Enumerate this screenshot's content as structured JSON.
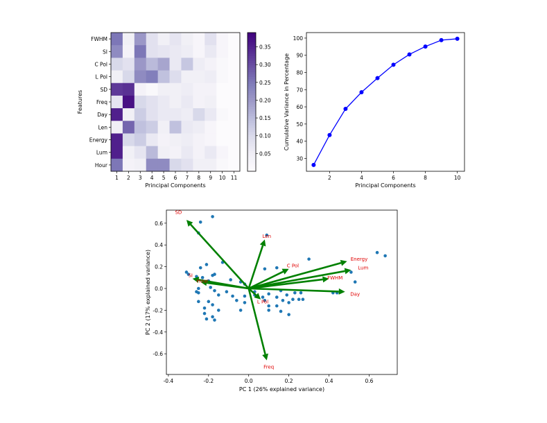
{
  "chart_data": [
    {
      "type": "heatmap",
      "rows": [
        "FWHM",
        "SI",
        "C Pol",
        "L Pol",
        "SD",
        "Freq",
        "Day",
        "Len",
        "Energy",
        "Lum",
        "Hour"
      ],
      "cols": [
        "1",
        "2",
        "3",
        "4",
        "5",
        "6",
        "7",
        "8",
        "9",
        "10",
        "11"
      ],
      "values": [
        [
          0.25,
          0.04,
          0.2,
          0.08,
          0.04,
          0.07,
          0.04,
          0.02,
          0.08,
          0.02,
          0.0
        ],
        [
          0.22,
          0.03,
          0.25,
          0.08,
          0.07,
          0.06,
          0.05,
          0.02,
          0.06,
          0.02,
          0.0
        ],
        [
          0.1,
          0.08,
          0.2,
          0.15,
          0.18,
          0.06,
          0.13,
          0.05,
          0.03,
          0.01,
          0.0
        ],
        [
          0.04,
          0.1,
          0.22,
          0.24,
          0.14,
          0.09,
          0.04,
          0.04,
          0.05,
          0.01,
          0.0
        ],
        [
          0.32,
          0.33,
          0.03,
          0.01,
          0.04,
          0.04,
          0.05,
          0.03,
          0.03,
          0.0,
          0.0
        ],
        [
          0.07,
          0.37,
          0.1,
          0.08,
          0.06,
          0.04,
          0.06,
          0.03,
          0.04,
          0.0,
          0.0
        ],
        [
          0.35,
          0.04,
          0.12,
          0.08,
          0.06,
          0.06,
          0.05,
          0.1,
          0.06,
          0.01,
          0.0
        ],
        [
          0.04,
          0.27,
          0.14,
          0.12,
          0.04,
          0.14,
          0.06,
          0.05,
          0.02,
          0.0,
          0.0
        ],
        [
          0.35,
          0.1,
          0.12,
          0.06,
          0.03,
          0.04,
          0.05,
          0.03,
          0.02,
          0.0,
          0.0
        ],
        [
          0.35,
          0.04,
          0.07,
          0.15,
          0.04,
          0.03,
          0.06,
          0.03,
          0.06,
          0.02,
          0.0
        ],
        [
          0.25,
          0.03,
          0.04,
          0.22,
          0.22,
          0.1,
          0.08,
          0.04,
          0.04,
          0.01,
          0.0
        ]
      ],
      "xlabel": "Principal Components",
      "ylabel": "Features",
      "colorbar": {
        "range": [
          0,
          0.39
        ],
        "ticks": [
          0.05,
          0.1,
          0.15,
          0.2,
          0.25,
          0.3,
          0.35
        ],
        "tick_labels": [
          "0.05",
          "0.10",
          "0.15",
          "0.20",
          "0.25",
          "0.30",
          "0.35"
        ],
        "colormap": "Purples"
      }
    },
    {
      "type": "line",
      "x": [
        1,
        2,
        3,
        4,
        5,
        6,
        7,
        8,
        9,
        10
      ],
      "y": [
        26.2,
        43.6,
        58.8,
        68.5,
        76.7,
        84.5,
        90.5,
        95.1,
        98.8,
        99.6
      ],
      "xlabel": "Principal Components",
      "ylabel": "Cumulative Variance in Percentage",
      "xlim": [
        0.55,
        10.45
      ],
      "ylim": [
        22.5,
        103.2
      ],
      "xticks": [
        2,
        4,
        6,
        8,
        10
      ],
      "yticks": [
        30,
        40,
        50,
        60,
        70,
        80,
        90,
        100
      ],
      "color": "#0000ff"
    },
    {
      "type": "scatter",
      "xlabel": "PC 1 (26% explained variance)",
      "ylabel": "PC 2 (17% explained variance)",
      "xlim": [
        -0.41,
        0.74
      ],
      "ylim": [
        -0.79,
        0.72
      ],
      "xticks": [
        -0.4,
        -0.2,
        0.0,
        0.2,
        0.4,
        0.6
      ],
      "yticks": [
        -0.6,
        -0.4,
        -0.2,
        0.0,
        0.2,
        0.4,
        0.6
      ],
      "point_color": "#1f77b4",
      "arrow_color": "#008000",
      "label_color": "#e00000",
      "points": [
        [
          -0.18,
          0.66
        ],
        [
          -0.24,
          0.61
        ],
        [
          -0.25,
          0.51
        ],
        [
          0.09,
          0.49
        ],
        [
          0.64,
          0.33
        ],
        [
          0.68,
          0.3
        ],
        [
          0.3,
          0.27
        ],
        [
          0.08,
          0.18
        ],
        [
          0.14,
          0.19
        ],
        [
          -0.31,
          0.15
        ],
        [
          -0.13,
          0.24
        ],
        [
          -0.21,
          0.22
        ],
        [
          -0.24,
          0.19
        ],
        [
          -0.3,
          0.13
        ],
        [
          -0.23,
          0.1
        ],
        [
          -0.18,
          0.12
        ],
        [
          -0.17,
          0.13
        ],
        [
          -0.26,
          0.11
        ],
        [
          -0.2,
          0.07
        ],
        [
          -0.09,
          0.08
        ],
        [
          -0.04,
          0.06
        ],
        [
          -0.02,
          0.04
        ],
        [
          -0.25,
          0.0
        ],
        [
          -0.25,
          -0.04
        ],
        [
          -0.19,
          0.01
        ],
        [
          -0.17,
          -0.02
        ],
        [
          -0.11,
          -0.03
        ],
        [
          -0.15,
          -0.06
        ],
        [
          -0.08,
          -0.07
        ],
        [
          -0.02,
          -0.07
        ],
        [
          0.03,
          -0.06
        ],
        [
          0.07,
          -0.08
        ],
        [
          0.1,
          -0.05
        ],
        [
          0.14,
          -0.08
        ],
        [
          0.19,
          -0.06
        ],
        [
          0.22,
          -0.1
        ],
        [
          0.23,
          -0.04
        ],
        [
          0.26,
          -0.04
        ],
        [
          0.2,
          -0.13
        ],
        [
          0.17,
          -0.11
        ],
        [
          0.14,
          -0.16
        ],
        [
          0.1,
          -0.16
        ],
        [
          0.1,
          -0.2
        ],
        [
          0.16,
          -0.21
        ],
        [
          0.2,
          -0.24
        ],
        [
          -0.22,
          -0.18
        ],
        [
          -0.25,
          -0.12
        ],
        [
          -0.2,
          -0.12
        ],
        [
          -0.18,
          -0.15
        ],
        [
          -0.15,
          -0.2
        ],
        [
          -0.18,
          -0.26
        ],
        [
          -0.17,
          -0.29
        ],
        [
          -0.21,
          -0.28
        ],
        [
          -0.22,
          -0.23
        ],
        [
          -0.26,
          -0.03
        ],
        [
          -0.04,
          -0.2
        ],
        [
          -0.06,
          -0.11
        ],
        [
          -0.02,
          -0.13
        ],
        [
          0.08,
          -0.11
        ],
        [
          0.25,
          -0.1
        ],
        [
          0.42,
          -0.04
        ],
        [
          0.44,
          -0.04
        ],
        [
          0.51,
          0.15
        ],
        [
          0.53,
          0.06
        ],
        [
          0.03,
          -0.03
        ],
        [
          0.16,
          -0.02
        ],
        [
          0.27,
          -0.1
        ]
      ],
      "arrows": [
        {
          "name": "SD",
          "dx": -0.31,
          "dy": 0.63,
          "label": [
            -0.35,
            0.7
          ]
        },
        {
          "name": "Len",
          "dx": 0.08,
          "dy": 0.45,
          "label": [
            0.09,
            0.48
          ]
        },
        {
          "name": "C Pol",
          "dx": 0.2,
          "dy": 0.18,
          "label": [
            0.22,
            0.21
          ]
        },
        {
          "name": "Energy",
          "dx": 0.49,
          "dy": 0.25,
          "label": [
            0.55,
            0.27
          ]
        },
        {
          "name": "Lum",
          "dx": 0.51,
          "dy": 0.17,
          "label": [
            0.57,
            0.19
          ]
        },
        {
          "name": "FWHM",
          "dx": 0.4,
          "dy": 0.09,
          "label": [
            0.43,
            0.1
          ]
        },
        {
          "name": "Day",
          "dx": 0.48,
          "dy": -0.03,
          "label": [
            0.53,
            -0.05
          ]
        },
        {
          "name": "SI",
          "dx": -0.28,
          "dy": 0.09,
          "label": [
            -0.29,
            0.12
          ]
        },
        {
          "name": "Hour",
          "dx": -0.24,
          "dy": 0.06,
          "label": [
            -0.23,
            0.07
          ]
        },
        {
          "name": "L Pol",
          "dx": 0.06,
          "dy": -0.1,
          "label": [
            0.07,
            -0.12
          ]
        },
        {
          "name": "Freq",
          "dx": 0.09,
          "dy": -0.66,
          "label": [
            0.1,
            -0.72
          ]
        }
      ]
    }
  ]
}
